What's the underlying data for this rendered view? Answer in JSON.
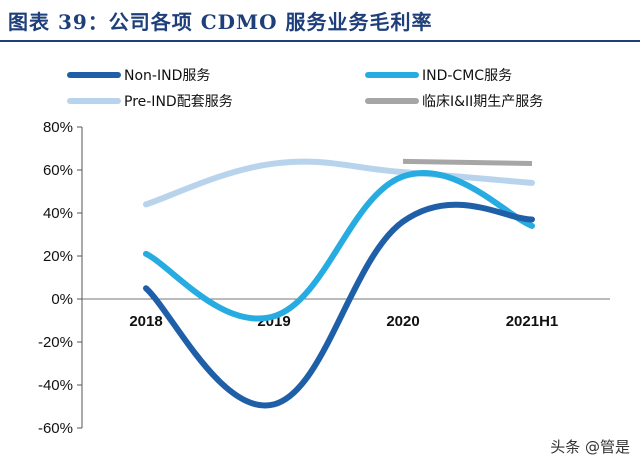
{
  "header": {
    "title": "图表 39：公司各项 CDMO 服务业务毛利率"
  },
  "watermark": "头条 @管是",
  "chart_data": {
    "type": "line",
    "categories": [
      "2018",
      "2019",
      "2020",
      "2021H1"
    ],
    "ylim": [
      -60,
      80
    ],
    "yticks": [
      "80%",
      "60%",
      "40%",
      "20%",
      "0%",
      "-20%",
      "-40%",
      "-60%"
    ],
    "ytick_values": [
      80,
      60,
      40,
      20,
      0,
      -20,
      -40,
      -60
    ],
    "grid": false,
    "legend_position": "top",
    "series": [
      {
        "name": "Non-IND服务",
        "color": "#1f5fa8",
        "values": [
          5,
          -49,
          36,
          37
        ]
      },
      {
        "name": "IND-CMC服务",
        "color": "#27ace2",
        "values": [
          21,
          -8,
          57,
          34
        ]
      },
      {
        "name": "Pre-IND配套服务",
        "color": "#b8d4ec",
        "values": [
          44,
          63,
          59,
          54
        ]
      },
      {
        "name": "临床I&II期生产服务",
        "color": "#a6a6a6",
        "values": [
          null,
          null,
          64,
          63
        ]
      }
    ]
  }
}
